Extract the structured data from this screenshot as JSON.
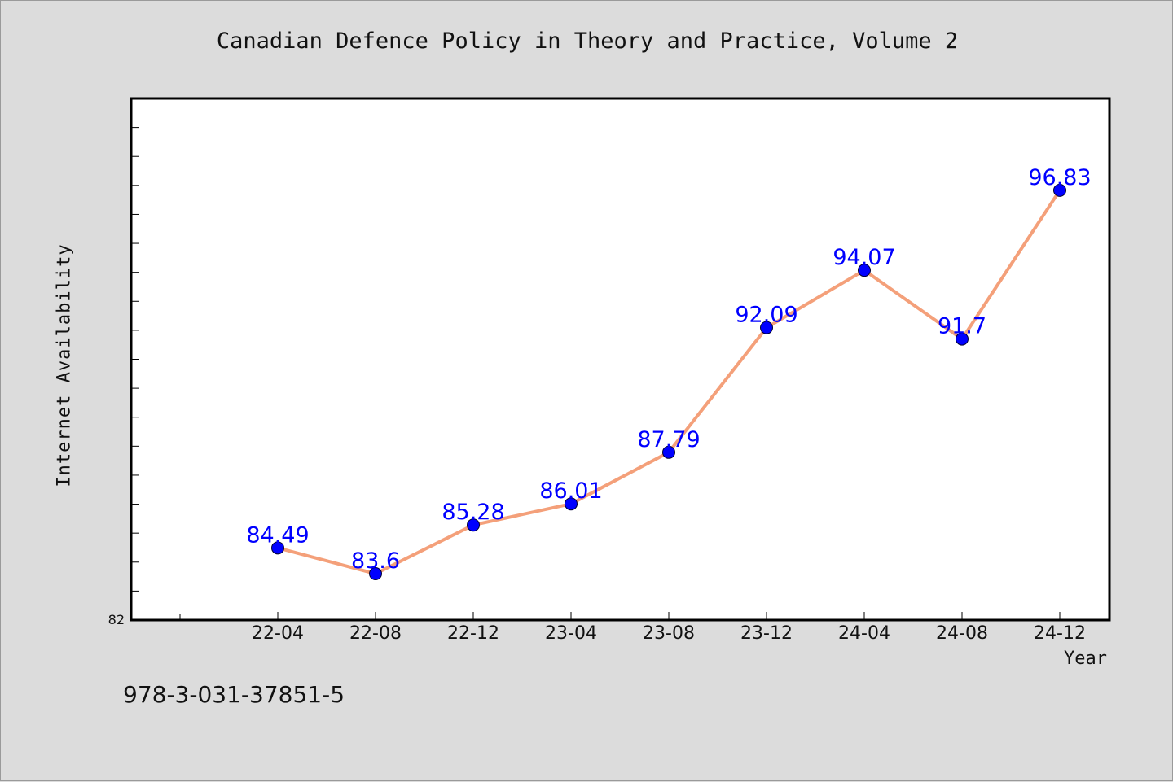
{
  "page": {
    "background": "#dcdcdc",
    "footer_text": "978-3-031-37851-5"
  },
  "chart_data": {
    "type": "line",
    "title": "Canadian Defence Policy in Theory and Practice, Volume 2",
    "xlabel": "Year",
    "ylabel": "Internet Availability",
    "categories": [
      "22-04",
      "22-08",
      "22-12",
      "23-04",
      "23-08",
      "23-12",
      "24-04",
      "24-08",
      "24-12"
    ],
    "series": [
      {
        "values": [
          84.49,
          83.6,
          85.28,
          86.01,
          87.79,
          92.09,
          94.07,
          91.7,
          96.83
        ],
        "line_color": "#f4a07a",
        "marker_color": "#0000ff",
        "label_color": "#0000ff"
      }
    ],
    "ylim": [
      82,
      100
    ],
    "y_min_label": "82",
    "grid": false,
    "legend": "none",
    "plot_background": "#ffffff"
  }
}
